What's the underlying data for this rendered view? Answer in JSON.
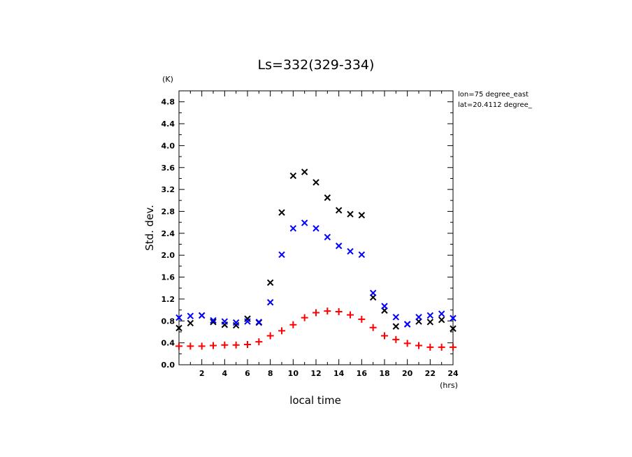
{
  "chart_data": {
    "type": "scatter",
    "title": "Ls=332(329-334)",
    "xlabel": "local time",
    "ylabel": "Std. dev.",
    "x_unit": "(hrs)",
    "y_unit": "(K)",
    "annotations": [
      "lon=75 degree_east",
      "lat=20.4112 degree_"
    ],
    "xlim": [
      0,
      24
    ],
    "ylim": [
      0,
      5.0
    ],
    "x_ticks": [
      2,
      4,
      6,
      8,
      10,
      12,
      14,
      16,
      18,
      20,
      22,
      24
    ],
    "y_ticks": [
      0.0,
      0.4,
      0.8,
      1.2,
      1.6,
      2.0,
      2.4,
      2.8,
      3.2,
      3.6,
      4.0,
      4.4,
      4.8
    ],
    "x_tick_labels": [
      "2",
      "4",
      "6",
      "8",
      "10",
      "12",
      "14",
      "16",
      "18",
      "20",
      "22",
      "24"
    ],
    "y_tick_labels": [
      "0.0",
      "0.4",
      "0.8",
      "1.2",
      "1.6",
      "2.0",
      "2.4",
      "2.8",
      "3.2",
      "3.6",
      "4.0",
      "4.4",
      "4.8"
    ],
    "grid": false,
    "series": [
      {
        "marker": "x",
        "color": "#000000",
        "x": [
          0,
          1,
          2,
          3,
          4,
          5,
          6,
          7,
          8,
          9,
          10,
          11,
          12,
          13,
          14,
          15,
          16,
          17,
          18,
          19,
          20,
          21,
          22,
          23,
          24
        ],
        "y": [
          0.67,
          0.76,
          0.9,
          0.78,
          0.73,
          0.72,
          0.84,
          0.77,
          1.5,
          2.78,
          3.45,
          3.52,
          3.33,
          3.05,
          2.82,
          2.75,
          2.73,
          1.23,
          0.99,
          0.7,
          0.74,
          0.79,
          0.78,
          0.82,
          0.66
        ]
      },
      {
        "marker": "x",
        "color": "#0000ff",
        "x": [
          0,
          1,
          2,
          3,
          4,
          5,
          6,
          7,
          8,
          9,
          10,
          11,
          12,
          13,
          14,
          15,
          16,
          17,
          18,
          19,
          20,
          21,
          22,
          23,
          24
        ],
        "y": [
          0.86,
          0.89,
          0.9,
          0.81,
          0.79,
          0.77,
          0.79,
          0.78,
          1.14,
          2.01,
          2.49,
          2.59,
          2.49,
          2.33,
          2.17,
          2.07,
          2.01,
          1.31,
          1.07,
          0.87,
          0.74,
          0.87,
          0.9,
          0.93,
          0.85
        ]
      },
      {
        "marker": "+",
        "color": "#ff0000",
        "x": [
          0,
          1,
          2,
          3,
          4,
          5,
          6,
          7,
          8,
          9,
          10,
          11,
          12,
          13,
          14,
          15,
          16,
          17,
          18,
          19,
          20,
          21,
          22,
          23,
          24
        ],
        "y": [
          0.34,
          0.34,
          0.34,
          0.35,
          0.36,
          0.36,
          0.37,
          0.42,
          0.53,
          0.62,
          0.73,
          0.86,
          0.95,
          0.98,
          0.97,
          0.91,
          0.83,
          0.68,
          0.53,
          0.46,
          0.39,
          0.35,
          0.32,
          0.32,
          0.32
        ]
      }
    ]
  }
}
